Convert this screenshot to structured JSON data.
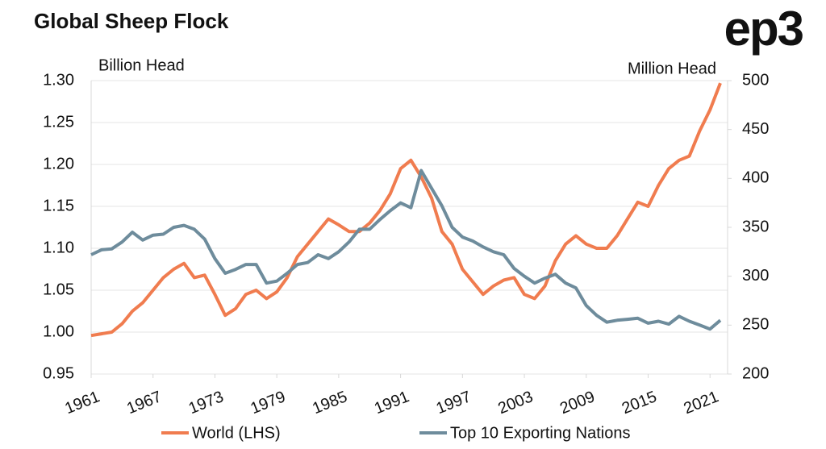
{
  "chart_data": {
    "type": "line",
    "title": "Global Sheep Flock",
    "logo": "ep3",
    "ylabel": "Billion Head",
    "y2label": "Million Head",
    "x": [
      1961,
      1962,
      1963,
      1964,
      1965,
      1966,
      1967,
      1968,
      1969,
      1970,
      1971,
      1972,
      1973,
      1974,
      1975,
      1976,
      1977,
      1978,
      1979,
      1980,
      1981,
      1982,
      1983,
      1984,
      1985,
      1986,
      1987,
      1988,
      1989,
      1990,
      1991,
      1992,
      1993,
      1994,
      1995,
      1996,
      1997,
      1998,
      1999,
      2000,
      2001,
      2002,
      2003,
      2004,
      2005,
      2006,
      2007,
      2008,
      2009,
      2010,
      2011,
      2012,
      2013,
      2014,
      2015,
      2016,
      2017,
      2018,
      2019,
      2020,
      2021,
      2022
    ],
    "series": [
      {
        "name": "World (LHS)",
        "color": "#f07c4f",
        "axis": "y",
        "values": [
          0.996,
          0.998,
          1.0,
          1.01,
          1.025,
          1.035,
          1.05,
          1.065,
          1.075,
          1.082,
          1.065,
          1.068,
          1.045,
          1.02,
          1.028,
          1.045,
          1.05,
          1.04,
          1.048,
          1.065,
          1.09,
          1.105,
          1.12,
          1.135,
          1.128,
          1.12,
          1.12,
          1.13,
          1.145,
          1.165,
          1.195,
          1.205,
          1.185,
          1.16,
          1.12,
          1.105,
          1.075,
          1.06,
          1.045,
          1.055,
          1.062,
          1.065,
          1.045,
          1.04,
          1.055,
          1.085,
          1.105,
          1.115,
          1.105,
          1.1,
          1.1,
          1.115,
          1.135,
          1.155,
          1.15,
          1.175,
          1.195,
          1.205,
          1.21,
          1.24,
          1.265,
          1.297
        ]
      },
      {
        "name": "Top 10 Exporting Nations",
        "color": "#6e8c9c",
        "axis": "y2",
        "values": [
          322,
          327,
          328,
          335,
          345,
          337,
          342,
          343,
          350,
          352,
          348,
          338,
          318,
          303,
          307,
          312,
          312,
          293,
          295,
          303,
          312,
          314,
          322,
          318,
          325,
          335,
          348,
          348,
          358,
          367,
          375,
          370,
          408,
          390,
          372,
          350,
          340,
          336,
          330,
          325,
          322,
          308,
          300,
          293,
          298,
          302,
          293,
          288,
          270,
          260,
          253,
          255,
          256,
          257,
          252,
          254,
          251,
          259,
          254,
          250,
          246,
          255
        ]
      }
    ],
    "xlim": [
      1961,
      2022
    ],
    "xticks": [
      1961,
      1967,
      1973,
      1979,
      1985,
      1991,
      1997,
      2003,
      2009,
      2015,
      2021
    ],
    "ylim": [
      0.95,
      1.3
    ],
    "yticks": [
      {
        "value": 0.95,
        "label": "0.95"
      },
      {
        "value": 1,
        "label": "1.00"
      },
      {
        "value": 1.05,
        "label": "1.05"
      },
      {
        "value": 1.1,
        "label": "1.10"
      },
      {
        "value": 1.15,
        "label": "1.15"
      },
      {
        "value": 1.2,
        "label": "1.20"
      },
      {
        "value": 1.25,
        "label": "1.25"
      },
      {
        "value": 1.3,
        "label": "1.30"
      }
    ],
    "y2lim": [
      200,
      500
    ],
    "y2ticks": [
      200,
      250,
      300,
      350,
      400,
      450,
      500
    ],
    "grid": true,
    "legend": "bottom"
  }
}
